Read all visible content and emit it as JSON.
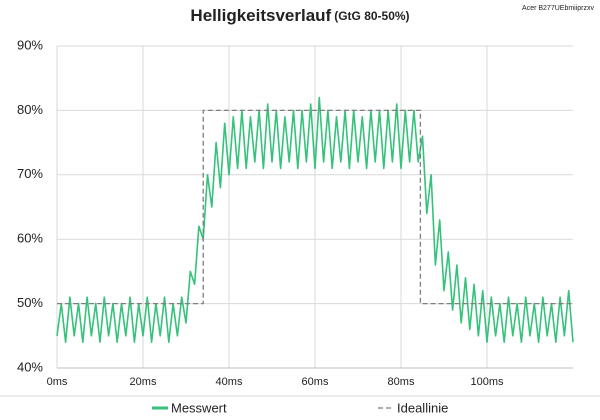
{
  "chart_data": {
    "type": "line",
    "title": "Helligkeitsverlauf",
    "subtitle": "(GtG 80-50%)",
    "corner_note": "Acer B277UEbmiiprzxv",
    "xlim": [
      0,
      120
    ],
    "ylim": [
      40,
      90
    ],
    "xticks": [
      {
        "value": 0,
        "label": "0ms"
      },
      {
        "value": 20,
        "label": "20ms"
      },
      {
        "value": 40,
        "label": "40ms"
      },
      {
        "value": 60,
        "label": "60ms"
      },
      {
        "value": 80,
        "label": "80ms"
      },
      {
        "value": 100,
        "label": "100ms"
      }
    ],
    "yticks": [
      {
        "value": 40,
        "label": "40%"
      },
      {
        "value": 50,
        "label": "50%"
      },
      {
        "value": 60,
        "label": "60%"
      },
      {
        "value": 70,
        "label": "70%"
      },
      {
        "value": 80,
        "label": "80%"
      },
      {
        "value": 90,
        "label": "90%"
      }
    ],
    "grid": true,
    "series": [
      {
        "name": "Messwert",
        "color": "#35c27a",
        "dash": false,
        "x": [
          0,
          1,
          2,
          3,
          4,
          5,
          6,
          7,
          8,
          9,
          10,
          11,
          12,
          13,
          14,
          15,
          16,
          17,
          18,
          19,
          20,
          21,
          22,
          23,
          24,
          25,
          26,
          27,
          28,
          29,
          30,
          31,
          32,
          33,
          34,
          35,
          36,
          37,
          38,
          39,
          40,
          41,
          42,
          43,
          44,
          45,
          46,
          47,
          48,
          49,
          50,
          51,
          52,
          53,
          54,
          55,
          56,
          57,
          58,
          59,
          60,
          61,
          62,
          63,
          64,
          65,
          66,
          67,
          68,
          69,
          70,
          71,
          72,
          73,
          74,
          75,
          76,
          77,
          78,
          79,
          80,
          81,
          82,
          83,
          84,
          85,
          86,
          87,
          88,
          89,
          90,
          91,
          92,
          93,
          94,
          95,
          96,
          97,
          98,
          99,
          100,
          101,
          102,
          103,
          104,
          105,
          106,
          107,
          108,
          109,
          110,
          111,
          112,
          113,
          114,
          115,
          116,
          117,
          118,
          119,
          120
        ],
        "values": [
          45,
          50,
          44,
          51,
          45,
          50,
          44,
          51,
          45,
          50,
          44,
          51,
          45,
          50,
          44,
          50,
          45,
          51,
          44,
          50,
          45,
          51,
          44,
          50,
          45,
          51,
          44,
          50,
          45,
          51,
          47,
          55,
          53,
          62,
          60,
          70,
          65,
          75,
          68,
          78,
          70,
          79,
          71,
          80,
          71,
          79,
          72,
          80,
          71,
          81,
          72,
          80,
          71,
          79,
          72,
          80,
          71,
          80,
          72,
          81,
          71,
          82,
          72,
          80,
          71,
          79,
          72,
          80,
          71,
          80,
          72,
          79,
          71,
          80,
          72,
          80,
          71,
          80,
          72,
          81,
          71,
          80,
          72,
          80,
          72,
          76,
          64,
          70,
          56,
          63,
          52,
          58,
          49,
          56,
          47,
          54,
          46,
          53,
          45,
          52,
          44,
          51,
          45,
          50,
          44,
          51,
          45,
          50,
          44,
          51,
          45,
          50,
          44,
          51,
          45,
          50,
          44,
          51,
          45,
          52,
          44
        ]
      },
      {
        "name": "Ideallinie",
        "color": "#7f7f7f",
        "dash": true,
        "x": [
          0,
          34,
          34,
          84.5,
          84.5,
          120
        ],
        "values": [
          50,
          50,
          80,
          80,
          50,
          50
        ]
      }
    ]
  }
}
